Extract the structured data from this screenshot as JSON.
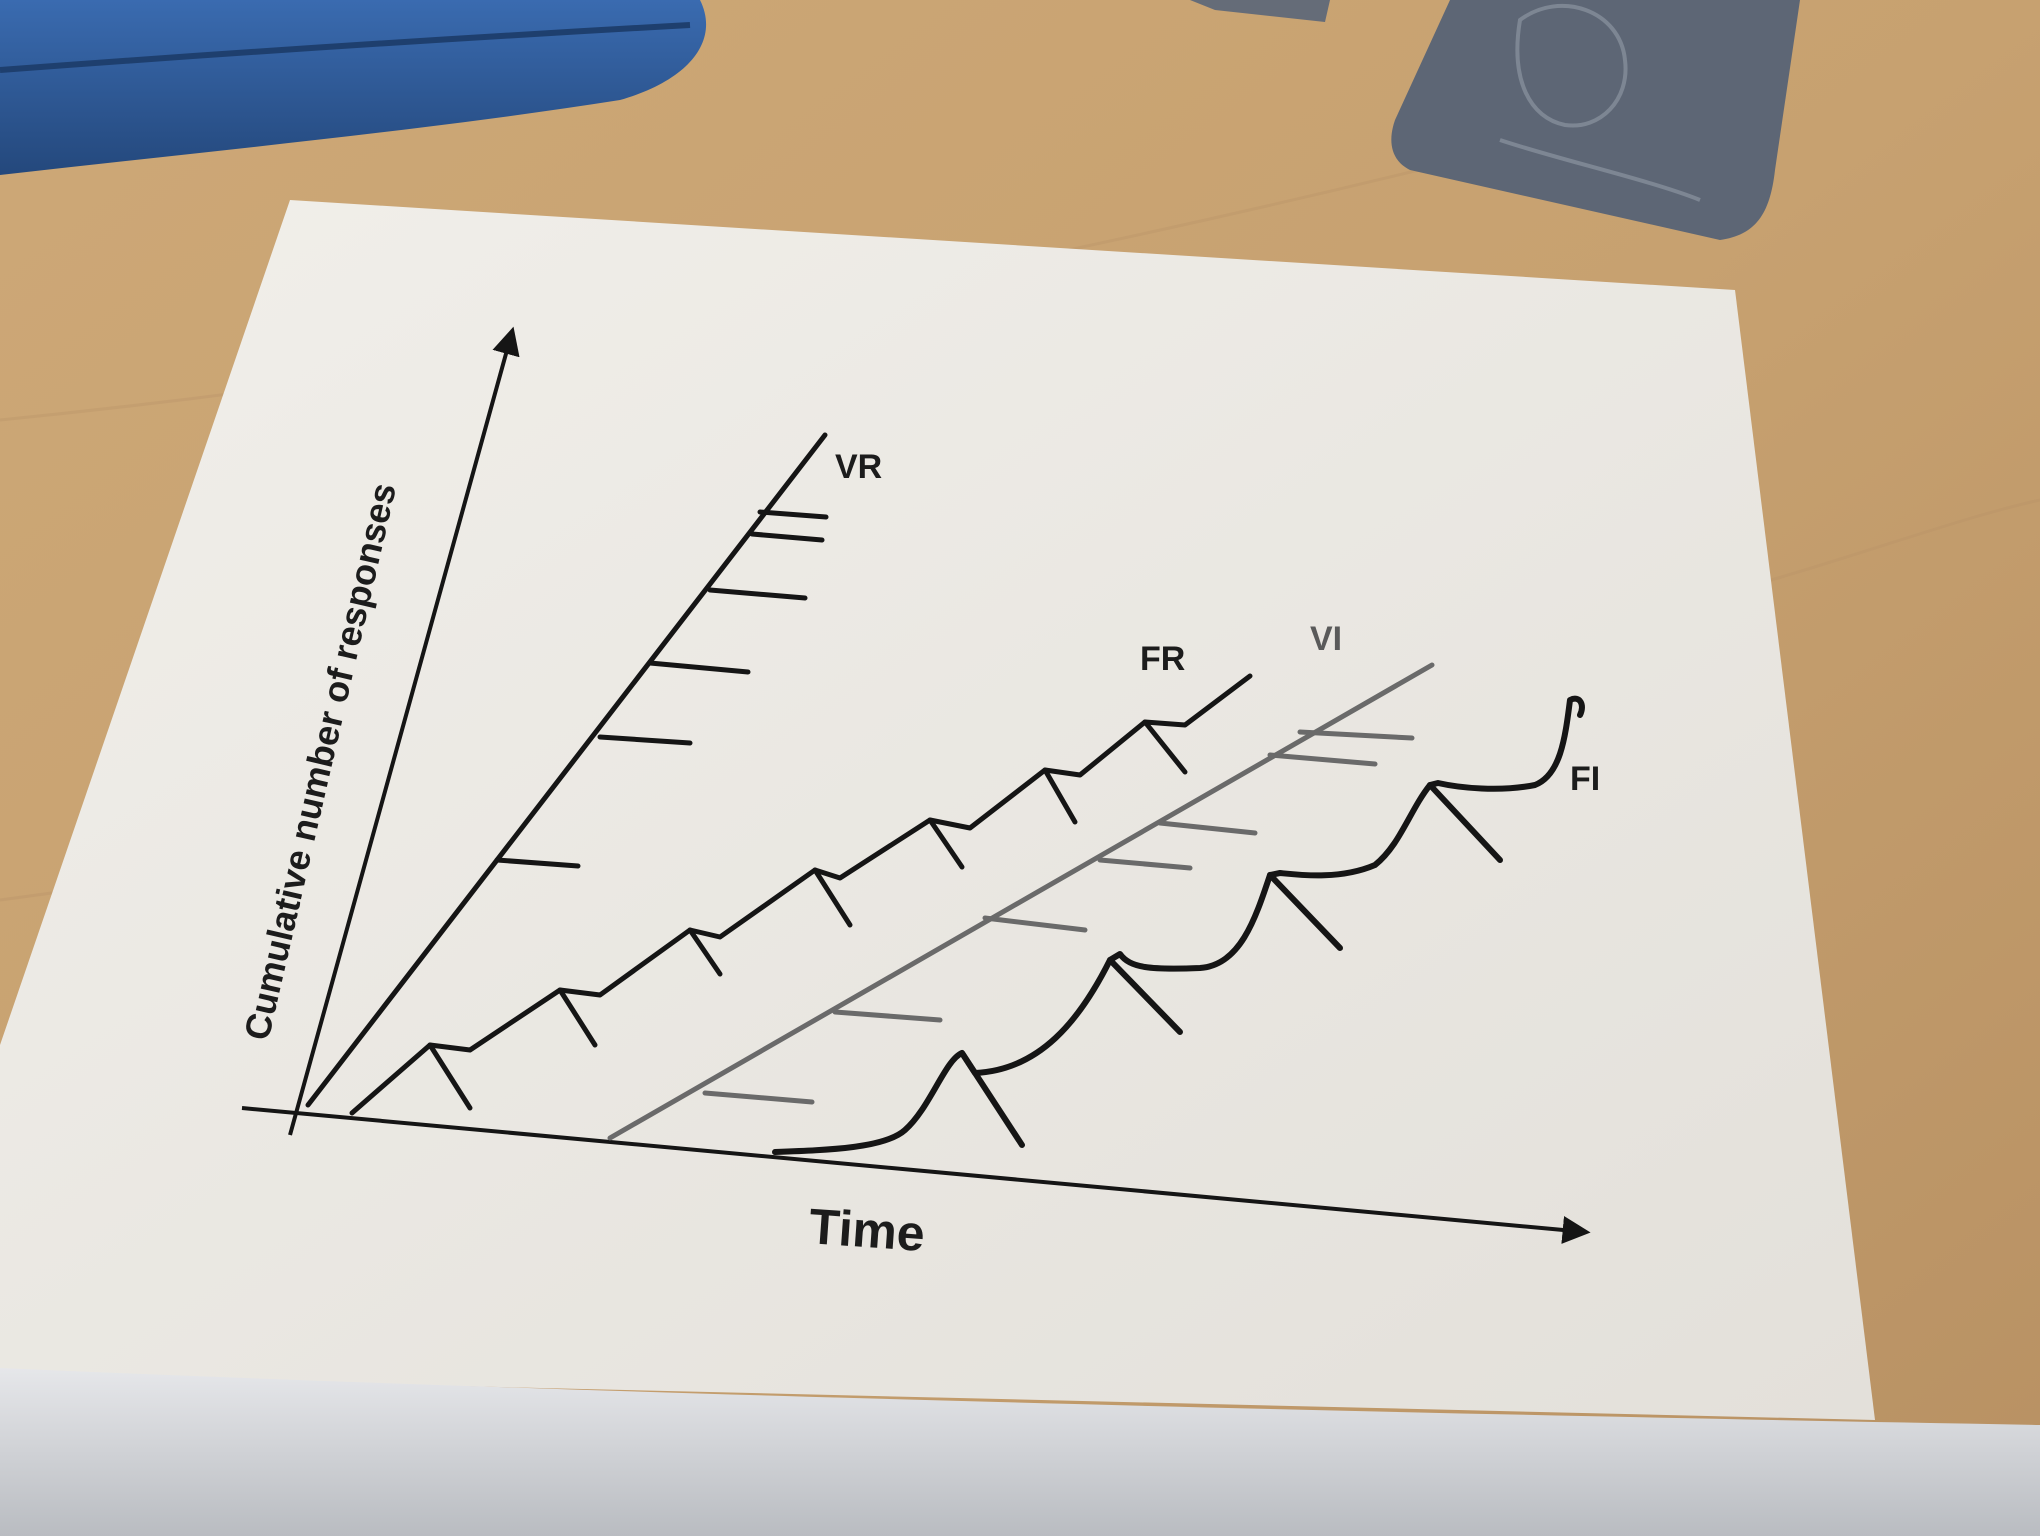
{
  "figure": {
    "y_axis_label": "Cumulative number of responses",
    "x_axis_label": "Time",
    "curve_labels": {
      "vr": "VR",
      "fr": "FR",
      "vi": "VI",
      "fi": "FI"
    }
  },
  "colors": {
    "desk": "#c9a777",
    "card": "#ece9e4",
    "ink": "#151515",
    "ink_light": "#6a6a6a",
    "cloth": "#2f5d9e",
    "tile": "#5d6675",
    "laptop": "#d4d6da"
  }
}
